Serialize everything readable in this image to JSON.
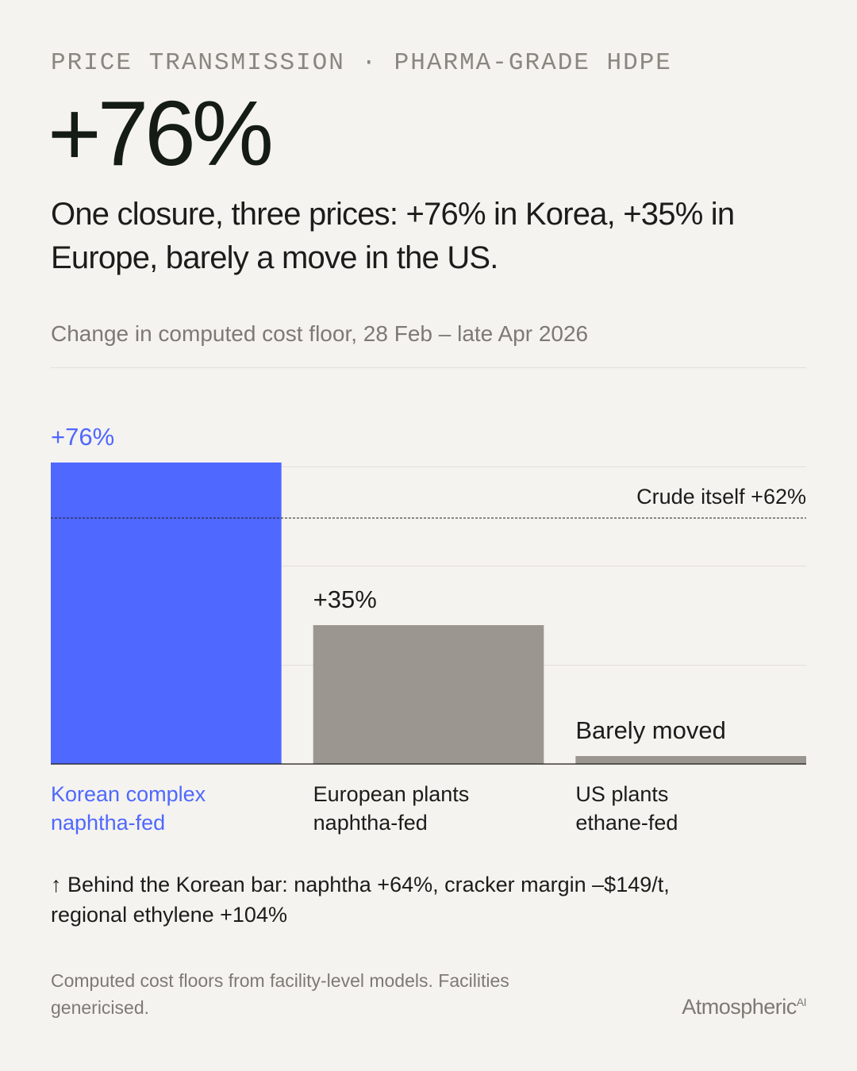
{
  "chart_data": {
    "type": "bar",
    "kicker": "PRICE TRANSMISSION · PHARMA-GRADE HDPE",
    "title": "+76%",
    "subtitle": "One closure, three prices: +76% in Korea, +35% in Europe, barely a move in the US.",
    "caption": "Change in computed cost floor, 28 Feb – late Apr 2026",
    "categories": [
      "Korean complex",
      "European plants",
      "US plants"
    ],
    "category_sublabels": [
      "naphtha-fed",
      "naphtha-fed",
      "ethane-fed"
    ],
    "values": [
      76,
      35,
      2
    ],
    "value_labels": [
      "+76%",
      "+35%",
      "Barely moved"
    ],
    "colors": [
      "#4f68ff",
      "#9b968f",
      "#9b968f"
    ],
    "label_colors": [
      "#4f68ff",
      "#1c1c1a",
      "#1c1c1a"
    ],
    "ylim": [
      0,
      80
    ],
    "yticks": [
      0,
      25,
      50,
      75
    ],
    "grid": true,
    "reference_line": {
      "value": 62,
      "label": "Crude itself +62%"
    },
    "note": "↑ Behind the Korean bar: naphtha +64%, cracker margin –$149/t, regional ethylene +104%",
    "footnote": "Computed cost floors from facility-level models. Facilities genericised.",
    "brand": "Atmospheric",
    "brand_suffix": "AI"
  }
}
